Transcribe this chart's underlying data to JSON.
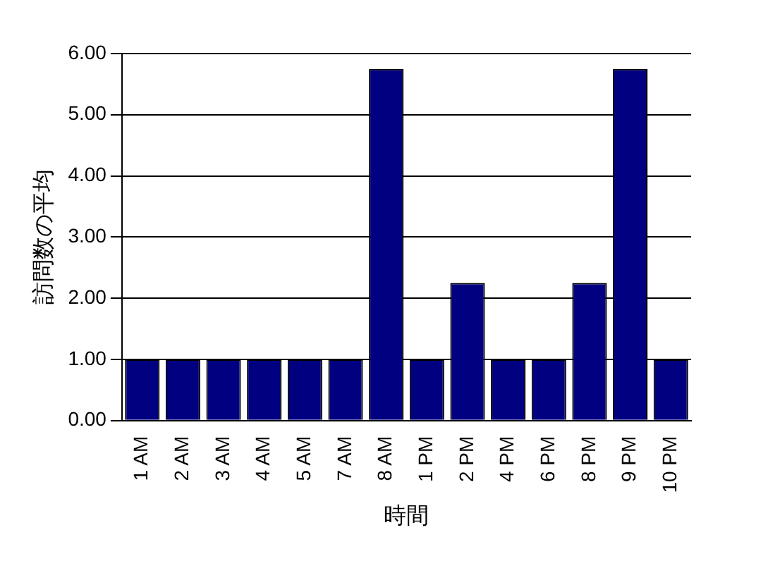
{
  "chart_data": {
    "type": "bar",
    "xlabel": "時間",
    "ylabel": "訪問数の平均",
    "categories": [
      "1 AM",
      "2 AM",
      "3 AM",
      "4 AM",
      "5 AM",
      "7 AM",
      "8 AM",
      "1 PM",
      "2 PM",
      "4 PM",
      "6 PM",
      "8 PM",
      "9 PM",
      "10 PM"
    ],
    "values": [
      1,
      1,
      1,
      1,
      1,
      1,
      5.75,
      1,
      2.25,
      1,
      1,
      2.25,
      5.75,
      1
    ],
    "color": "#000080",
    "ylim": [
      0,
      6
    ],
    "yticks": [
      {
        "value": 0,
        "label": "0.00"
      },
      {
        "value": 1,
        "label": "1.00"
      },
      {
        "value": 2,
        "label": "2.00"
      },
      {
        "value": 3,
        "label": "3.00"
      },
      {
        "value": 4,
        "label": "4.00"
      },
      {
        "value": 5,
        "label": "5.00"
      },
      {
        "value": 6,
        "label": "6.00"
      }
    ],
    "grid": "y"
  }
}
